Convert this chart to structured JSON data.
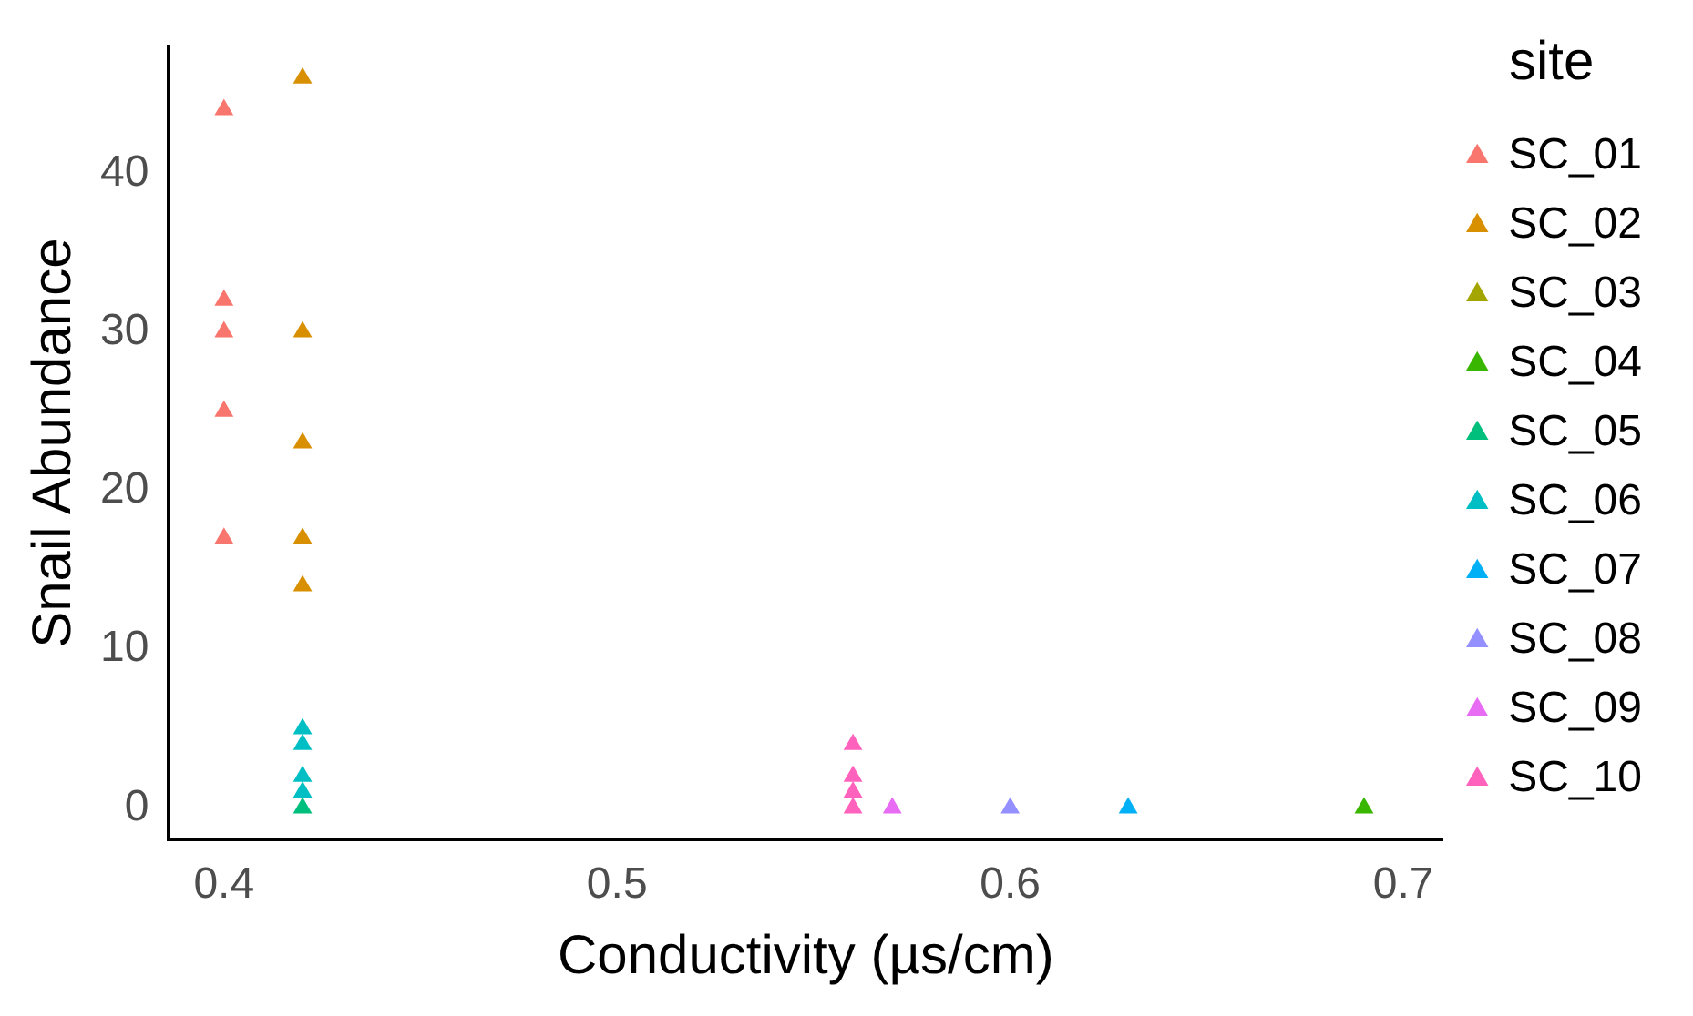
{
  "chart_data": {
    "type": "scatter",
    "xlabel": "Conductivity (µs/cm)",
    "ylabel": "Snail Abundance",
    "legend_title": "site",
    "legend": "right",
    "grid": false,
    "marker": "triangle",
    "xlim": [
      0.386,
      0.71
    ],
    "xticks": [
      0.4,
      0.5,
      0.6,
      0.7
    ],
    "ylim": [
      -2,
      48
    ],
    "yticks": [
      0,
      10,
      20,
      30,
      40
    ],
    "series": [
      {
        "name": "SC_01",
        "color": "#f8766d",
        "x": [
          0.4,
          0.4,
          0.4,
          0.4,
          0.4
        ],
        "values": [
          44,
          32,
          30,
          25,
          17
        ]
      },
      {
        "name": "SC_02",
        "color": "#d89000",
        "x": [
          0.42,
          0.42,
          0.42,
          0.42,
          0.42
        ],
        "values": [
          46,
          30,
          23,
          17,
          14
        ]
      },
      {
        "name": "SC_03",
        "color": "#a3a500"
      },
      {
        "name": "SC_04",
        "color": "#39b600",
        "x": [
          0.69
        ],
        "values": [
          0
        ]
      },
      {
        "name": "SC_05",
        "color": "#00bf7d",
        "x": [
          0.42
        ],
        "values": [
          0
        ]
      },
      {
        "name": "SC_06",
        "color": "#00bfc4",
        "x": [
          0.42,
          0.42,
          0.42,
          0.42
        ],
        "values": [
          5,
          4,
          2,
          1
        ]
      },
      {
        "name": "SC_07",
        "color": "#00b0f6",
        "x": [
          0.63
        ],
        "values": [
          0
        ]
      },
      {
        "name": "SC_08",
        "color": "#9590ff",
        "x": [
          0.6
        ],
        "values": [
          0
        ]
      },
      {
        "name": "SC_09",
        "color": "#e76bf3",
        "x": [
          0.57
        ],
        "values": [
          0
        ]
      },
      {
        "name": "SC_10",
        "color": "#ff62bc",
        "x": [
          0.56,
          0.56,
          0.56,
          0.56
        ],
        "values": [
          4,
          2,
          1,
          0
        ]
      }
    ]
  }
}
